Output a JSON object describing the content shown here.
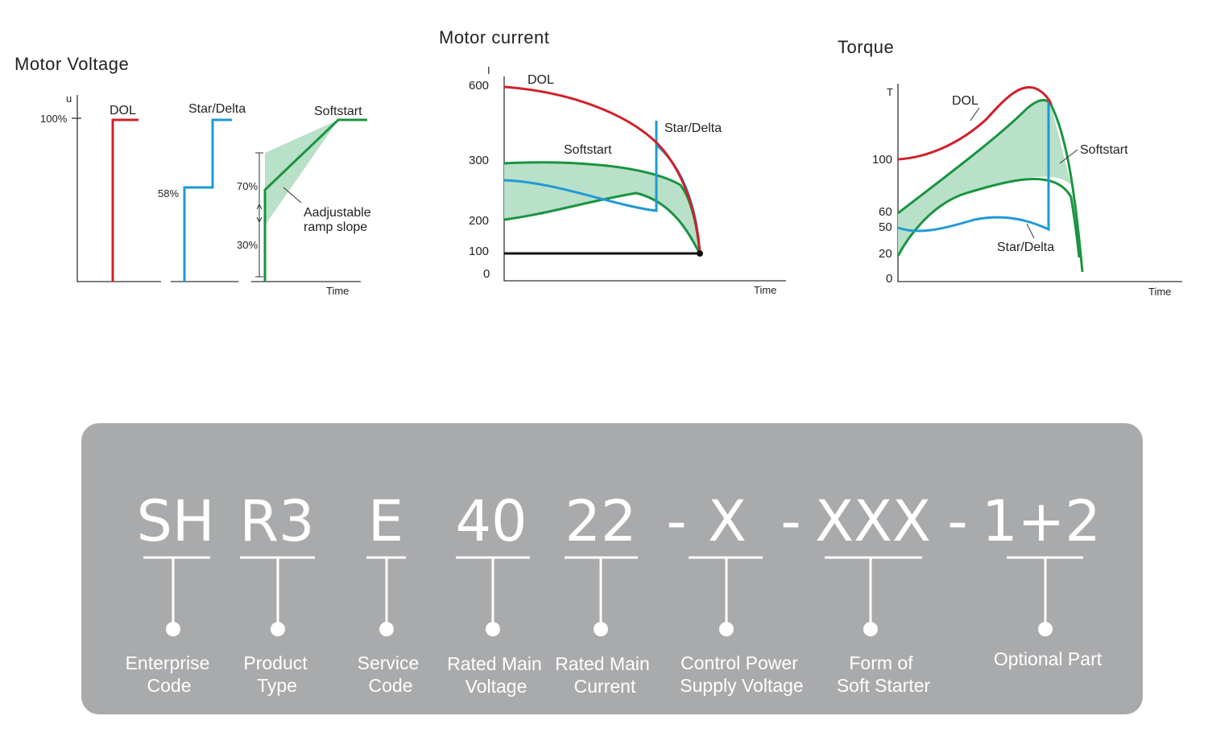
{
  "voltage_chart": {
    "title": "Motor Voltage",
    "y_axis_label": "u",
    "x_axis_label": "Time",
    "tick_100": "100%",
    "tick_58": "58%",
    "tick_70": "70%",
    "tick_30": "30%",
    "dol_label": "DOL",
    "star_delta_label": "Star/Delta",
    "softstart_label": "Softstart",
    "ramp_note_line1": "Aadjustable",
    "ramp_note_line2": "ramp slope"
  },
  "current_chart": {
    "title": "Motor current",
    "y_axis_label": "I",
    "x_axis_label": "Time",
    "ticks": [
      "600",
      "300",
      "200",
      "100",
      "0"
    ],
    "dol_label": "DOL",
    "star_delta_label": "Star/Delta",
    "softstart_label": "Softstart"
  },
  "torque_chart": {
    "title": "Torque",
    "y_axis_label": "T",
    "x_axis_label": "Time",
    "ticks": [
      "100",
      "60",
      "50",
      "20",
      "0"
    ],
    "dol_label": "DOL",
    "softstart_label": "Softstart",
    "star_delta_label": "Star/Delta"
  },
  "colors": {
    "dol": "#d0202a",
    "star_delta": "#1e9ad6",
    "softstart": "#1a9440",
    "softstart_fill": "#b9e0c8",
    "panel": "#a9aaac"
  },
  "model_code": {
    "segments": [
      {
        "code": "SH",
        "desc_line1": "Enterprise",
        "desc_line2": "Code"
      },
      {
        "code": "R3",
        "desc_line1": "Product",
        "desc_line2": "Type"
      },
      {
        "code": "E",
        "desc_line1": "Service",
        "desc_line2": "Code"
      },
      {
        "code": "40",
        "desc_line1": "Rated Main",
        "desc_line2": "Voltage"
      },
      {
        "code": "22",
        "desc_line1": "Rated Main",
        "desc_line2": "Current"
      },
      {
        "code": "X",
        "desc_line1": "Control Power",
        "desc_line2": "Supply Voltage"
      },
      {
        "code": "XXX",
        "desc_line1": "Form of",
        "desc_line2": "Soft Starter"
      },
      {
        "code": "1+2",
        "desc_line1": "Optional Part",
        "desc_line2": ""
      }
    ],
    "separator": "-"
  }
}
